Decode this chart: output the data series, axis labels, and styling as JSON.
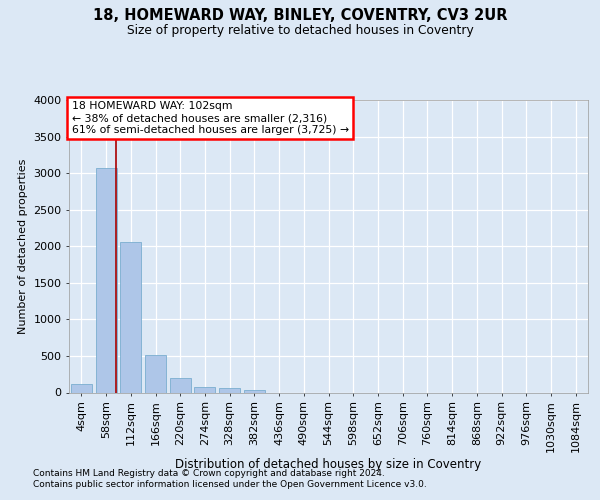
{
  "title": "18, HOMEWARD WAY, BINLEY, COVENTRY, CV3 2UR",
  "subtitle": "Size of property relative to detached houses in Coventry",
  "xlabel": "Distribution of detached houses by size in Coventry",
  "ylabel": "Number of detached properties",
  "footer_line1": "Contains HM Land Registry data © Crown copyright and database right 2024.",
  "footer_line2": "Contains public sector information licensed under the Open Government Licence v3.0.",
  "bar_labels": [
    "4sqm",
    "58sqm",
    "112sqm",
    "166sqm",
    "220sqm",
    "274sqm",
    "328sqm",
    "382sqm",
    "436sqm",
    "490sqm",
    "544sqm",
    "598sqm",
    "652sqm",
    "706sqm",
    "760sqm",
    "814sqm",
    "868sqm",
    "922sqm",
    "976sqm",
    "1030sqm",
    "1084sqm"
  ],
  "bar_values": [
    120,
    3070,
    2060,
    510,
    200,
    80,
    60,
    40,
    0,
    0,
    0,
    0,
    0,
    0,
    0,
    0,
    0,
    0,
    0,
    0,
    0
  ],
  "bar_color": "#aec6e8",
  "bar_edge_color": "#7aaed0",
  "bg_color": "#dce8f5",
  "grid_color": "#ffffff",
  "annotation_line1": "18 HOMEWARD WAY: 102sqm",
  "annotation_line2": "← 38% of detached houses are smaller (2,316)",
  "annotation_line3": "61% of semi-detached houses are larger (3,725) →",
  "red_line_x": 1.42,
  "ylim_max": 4000,
  "ytick_max": 4000,
  "ytick_step": 500
}
